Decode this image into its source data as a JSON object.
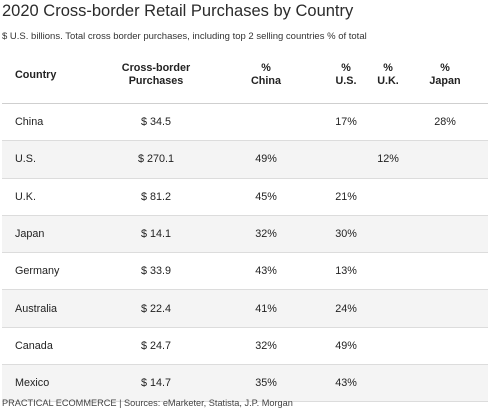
{
  "title": "2020 Cross-border Retail Purchases by Country",
  "subtitle": "$ U.S. billions. Total cross border purchases, including top 2 selling countries % of total",
  "footer": "PRACTICAL ECOMMERCE | Sources: eMarketer, Statista, J.P. Morgan",
  "chart_data": {
    "type": "table",
    "title": "2020 Cross-border Retail Purchases by Country",
    "subtitle": "$ U.S. billions. Total cross border purchases, including top 2 selling countries % of total",
    "columns": [
      "Country",
      "Cross-border\nPurchases",
      "%\nChina",
      "%\nU.S.",
      "%\nU.K.",
      "%\nJapan"
    ],
    "rows": [
      [
        "China",
        "$ 34.5",
        "",
        "17%",
        "",
        "28%"
      ],
      [
        "U.S.",
        "$ 270.1",
        "49%",
        "",
        "12%",
        ""
      ],
      [
        "U.K.",
        "$ 81.2",
        "45%",
        "21%",
        "",
        ""
      ],
      [
        "Japan",
        "$ 14.1",
        "32%",
        "30%",
        "",
        ""
      ],
      [
        "Germany",
        "$ 33.9",
        "43%",
        "13%",
        "",
        ""
      ],
      [
        "Australia",
        "$ 22.4",
        "41%",
        "24%",
        "",
        ""
      ],
      [
        "Canada",
        "$ 24.7",
        "32%",
        "49%",
        "",
        ""
      ],
      [
        "Mexico",
        "$ 14.7",
        "35%",
        "43%",
        "",
        ""
      ]
    ]
  }
}
